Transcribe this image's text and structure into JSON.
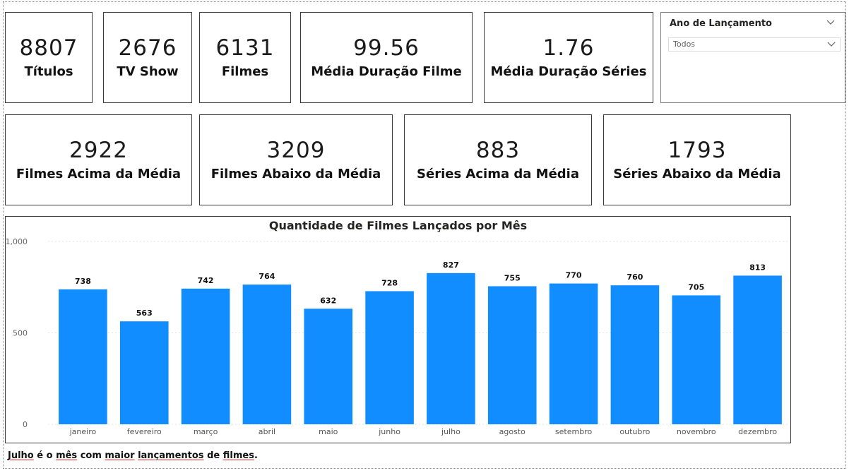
{
  "kpis": [
    {
      "value": "8807",
      "label": "Títulos"
    },
    {
      "value": "2676",
      "label": "TV Show"
    },
    {
      "value": "6131",
      "label": "Filmes"
    },
    {
      "value": "99.56",
      "label": "Média Duração Filme"
    },
    {
      "value": "1.76",
      "label": "Média Duração Séries"
    },
    {
      "value": "2922",
      "label": "Filmes Acima da Média"
    },
    {
      "value": "3209",
      "label": "Filmes Abaixo da Média"
    },
    {
      "value": "883",
      "label": "Séries Acima da Média"
    },
    {
      "value": "1793",
      "label": "Séries Abaixo da Média"
    }
  ],
  "slicer": {
    "title": "Ano de Lançamento",
    "value": "Todos",
    "icons": [
      "chevron-down-icon",
      "chevron-down-icon"
    ]
  },
  "colors": {
    "bar": "#118DFF",
    "border": "#3a3a3a",
    "underline": "#d9252b"
  },
  "chart_data": {
    "type": "bar",
    "title": "Quantidade de Filmes Lançados por Mês",
    "categories": [
      "janeiro",
      "fevereiro",
      "março",
      "abril",
      "maio",
      "junho",
      "julho",
      "agosto",
      "setembro",
      "outubro",
      "novembro",
      "dezembro"
    ],
    "values": [
      738,
      563,
      742,
      764,
      632,
      728,
      827,
      755,
      770,
      760,
      705,
      813
    ],
    "yticks": [
      "1,000",
      "500",
      "0"
    ],
    "ylim": [
      0,
      1000
    ],
    "grid": true,
    "data_labels": true,
    "xlabel": "",
    "ylabel": ""
  },
  "note": {
    "parts": [
      "Julho",
      " é o ",
      "mês",
      " com ",
      "maior",
      " ",
      "lançamentos",
      " de ",
      "filmes",
      "."
    ]
  }
}
